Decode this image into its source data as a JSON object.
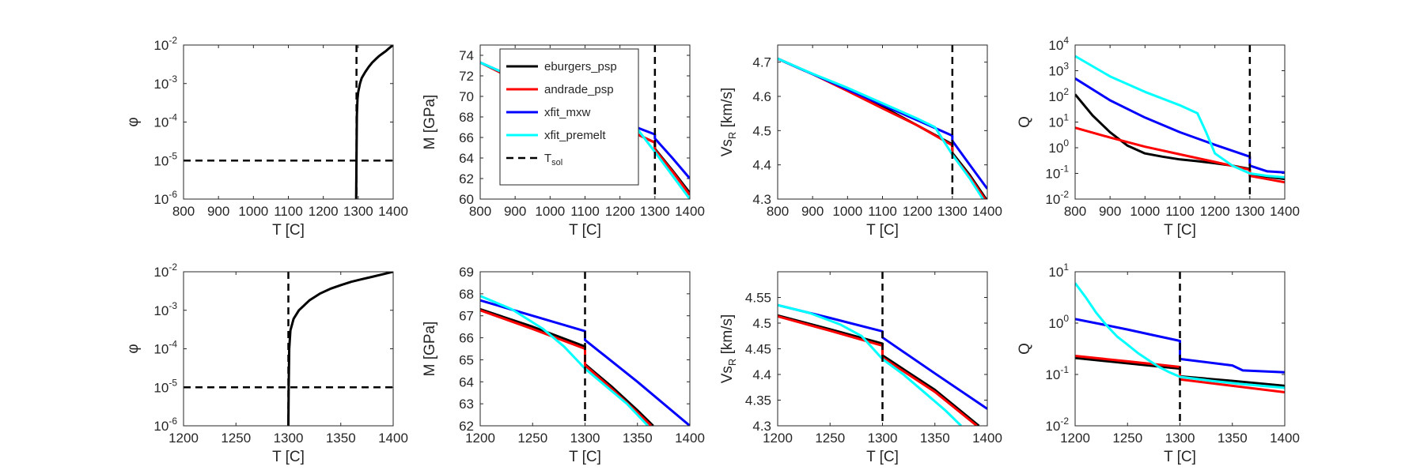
{
  "colors": {
    "eburgers_psp": "#000000",
    "andrade_psp": "#ff0000",
    "xfit_mxw": "#0000ff",
    "xfit_premelt": "#00ffff",
    "T_sol": "#000000"
  },
  "legend": {
    "entries": [
      "eburgers_psp",
      "andrade_psp",
      "xfit_mxw",
      "xfit_premelt"
    ],
    "tsol_label": "T",
    "tsol_sub": "sol"
  },
  "chart_data": [
    {
      "id": "phi-full",
      "type": "line",
      "xlabel": "T [C]",
      "ylabel": "φ",
      "yscale": "log",
      "xlim": [
        800,
        1400
      ],
      "ylim": [
        1e-06,
        0.01
      ],
      "xticks": [
        "800",
        "900",
        "1000",
        "1100",
        "1200",
        "1300",
        "1400"
      ],
      "yticks": [
        {
          "base": "10",
          "exp": "-6",
          "v": 1e-06
        },
        {
          "base": "10",
          "exp": "-5",
          "v": 1e-05
        },
        {
          "base": "10",
          "exp": "-4",
          "v": 0.0001
        },
        {
          "base": "10",
          "exp": "-3",
          "v": 0.001
        },
        {
          "base": "10",
          "exp": "-2",
          "v": 0.01
        }
      ],
      "vline": 1295,
      "hline": 1e-05,
      "series": [
        {
          "name": "phi",
          "color": "#000000",
          "x": [
            1294,
            1295,
            1296,
            1298,
            1300,
            1305,
            1310,
            1320,
            1330,
            1340,
            1350,
            1360,
            1370,
            1380,
            1390,
            1400
          ],
          "y": [
            1e-06,
            1e-05,
            0.00015,
            0.0004,
            0.0006,
            0.001,
            0.0014,
            0.002,
            0.0027,
            0.0035,
            0.0043,
            0.0052,
            0.0061,
            0.0071,
            0.0085,
            0.01
          ]
        }
      ]
    },
    {
      "id": "M-full",
      "type": "line",
      "xlabel": "T [C]",
      "ylabel": "M [GPa]",
      "xlim": [
        800,
        1400
      ],
      "ylim": [
        60,
        75
      ],
      "xticks": [
        "800",
        "900",
        "1000",
        "1100",
        "1200",
        "1300",
        "1400"
      ],
      "yticks": [
        {
          "label": "60",
          "v": 60
        },
        {
          "label": "62",
          "v": 62
        },
        {
          "label": "64",
          "v": 64
        },
        {
          "label": "66",
          "v": 66
        },
        {
          "label": "68",
          "v": 68
        },
        {
          "label": "70",
          "v": 70
        },
        {
          "label": "72",
          "v": 72
        },
        {
          "label": "74",
          "v": 74
        }
      ],
      "vline": 1300,
      "legend": "inside-upper-left",
      "series": [
        {
          "name": "eburgers_psp",
          "color": "#000000",
          "x": [
            800,
            900,
            1000,
            1100,
            1200,
            1300,
            1300,
            1350,
            1400
          ],
          "y": [
            73.3,
            71.6,
            70.0,
            68.6,
            67.1,
            65.5,
            64.9,
            62.8,
            60.6
          ]
        },
        {
          "name": "andrade_psp",
          "color": "#ff0000",
          "x": [
            800,
            900,
            1000,
            1100,
            1200,
            1300,
            1300,
            1350,
            1400
          ],
          "y": [
            73.3,
            71.6,
            70.0,
            68.6,
            67.1,
            65.5,
            64.8,
            62.7,
            60.4
          ]
        },
        {
          "name": "xfit_mxw",
          "color": "#0000ff",
          "x": [
            800,
            900,
            1000,
            1100,
            1200,
            1300,
            1300,
            1350,
            1400
          ],
          "y": [
            73.3,
            71.8,
            70.3,
            68.9,
            67.6,
            66.3,
            65.9,
            64.0,
            62.0
          ]
        },
        {
          "name": "xfit_premelt",
          "color": "#00ffff",
          "x": [
            800,
            900,
            1000,
            1100,
            1200,
            1250,
            1300,
            1350,
            1400
          ],
          "y": [
            73.3,
            71.8,
            70.3,
            68.9,
            67.8,
            66.8,
            64.6,
            62.3,
            60.0
          ]
        }
      ]
    },
    {
      "id": "Vs-full",
      "type": "line",
      "xlabel": "T [C]",
      "ylabel": "Vs",
      "ylabel_sub": "R",
      "ylabel_tail": " [km/s]",
      "xlim": [
        800,
        1400
      ],
      "ylim": [
        4.3,
        4.75
      ],
      "xticks": [
        "800",
        "900",
        "1000",
        "1100",
        "1200",
        "1300",
        "1400"
      ],
      "yticks": [
        {
          "label": "4.3",
          "v": 4.3
        },
        {
          "label": "4.4",
          "v": 4.4
        },
        {
          "label": "4.5",
          "v": 4.5
        },
        {
          "label": "4.6",
          "v": 4.6
        },
        {
          "label": "4.7",
          "v": 4.7
        }
      ],
      "vline": 1300,
      "series": [
        {
          "name": "eburgers_psp",
          "color": "#000000",
          "x": [
            800,
            900,
            1000,
            1100,
            1200,
            1300,
            1300,
            1350,
            1400
          ],
          "y": [
            4.71,
            4.665,
            4.618,
            4.57,
            4.515,
            4.46,
            4.435,
            4.37,
            4.295
          ]
        },
        {
          "name": "andrade_psp",
          "color": "#ff0000",
          "x": [
            800,
            900,
            1000,
            1100,
            1200,
            1300,
            1300,
            1350,
            1400
          ],
          "y": [
            4.71,
            4.665,
            4.616,
            4.565,
            4.515,
            4.457,
            4.43,
            4.365,
            4.29
          ]
        },
        {
          "name": "xfit_mxw",
          "color": "#0000ff",
          "x": [
            800,
            900,
            1000,
            1100,
            1200,
            1300,
            1300,
            1350,
            1400
          ],
          "y": [
            4.71,
            4.665,
            4.62,
            4.575,
            4.53,
            4.485,
            4.47,
            4.4,
            4.33
          ]
        },
        {
          "name": "xfit_premelt",
          "color": "#00ffff",
          "x": [
            800,
            900,
            1000,
            1100,
            1200,
            1250,
            1300,
            1350,
            1400
          ],
          "y": [
            4.71,
            4.666,
            4.625,
            4.58,
            4.535,
            4.51,
            4.43,
            4.36,
            4.28
          ]
        }
      ]
    },
    {
      "id": "Q-full",
      "type": "line",
      "xlabel": "T [C]",
      "ylabel": "Q",
      "yscale": "log",
      "xlim": [
        800,
        1400
      ],
      "ylim": [
        0.01,
        10000
      ],
      "xticks": [
        "800",
        "900",
        "1000",
        "1100",
        "1200",
        "1300",
        "1400"
      ],
      "yticks": [
        {
          "base": "10",
          "exp": "-2",
          "v": 0.01
        },
        {
          "base": "10",
          "exp": "-1",
          "v": 0.1
        },
        {
          "base": "10",
          "exp": "0",
          "v": 1
        },
        {
          "base": "10",
          "exp": "1",
          "v": 10
        },
        {
          "base": "10",
          "exp": "2",
          "v": 100
        },
        {
          "base": "10",
          "exp": "3",
          "v": 1000
        },
        {
          "base": "10",
          "exp": "4",
          "v": 10000
        }
      ],
      "vline": 1300,
      "series": [
        {
          "name": "eburgers_psp",
          "color": "#000000",
          "x": [
            800,
            850,
            900,
            950,
            1000,
            1050,
            1100,
            1150,
            1200,
            1250,
            1300,
            1300,
            1350,
            1400
          ],
          "y": [
            120,
            18,
            4,
            1.2,
            0.6,
            0.45,
            0.35,
            0.3,
            0.25,
            0.2,
            0.15,
            0.09,
            0.075,
            0.06
          ]
        },
        {
          "name": "andrade_psp",
          "color": "#ff0000",
          "x": [
            800,
            900,
            1000,
            1100,
            1200,
            1300,
            1300,
            1350,
            1400
          ],
          "y": [
            6,
            2.5,
            1.1,
            0.55,
            0.28,
            0.14,
            0.08,
            0.06,
            0.045
          ]
        },
        {
          "name": "xfit_mxw",
          "color": "#0000ff",
          "x": [
            800,
            900,
            1000,
            1100,
            1200,
            1300,
            1300,
            1350,
            1400
          ],
          "y": [
            500,
            70,
            15,
            4,
            1.3,
            0.45,
            0.2,
            0.12,
            0.11
          ]
        },
        {
          "name": "xfit_premelt",
          "color": "#00ffff",
          "x": [
            800,
            900,
            1000,
            1100,
            1150,
            1175,
            1200,
            1250,
            1300,
            1350,
            1400
          ],
          "y": [
            3700,
            600,
            150,
            45,
            22,
            4,
            0.6,
            0.2,
            0.1,
            0.08,
            0.07
          ]
        }
      ]
    },
    {
      "id": "phi-zoom",
      "type": "line",
      "xlabel": "T [C]",
      "ylabel": "φ",
      "yscale": "log",
      "xlim": [
        1200,
        1400
      ],
      "ylim": [
        1e-06,
        0.01
      ],
      "xticks": [
        "1200",
        "1250",
        "1300",
        "1350",
        "1400"
      ],
      "yticks": [
        {
          "base": "10",
          "exp": "-6",
          "v": 1e-06
        },
        {
          "base": "10",
          "exp": "-5",
          "v": 1e-05
        },
        {
          "base": "10",
          "exp": "-4",
          "v": 0.0001
        },
        {
          "base": "10",
          "exp": "-3",
          "v": 0.001
        },
        {
          "base": "10",
          "exp": "-2",
          "v": 0.01
        }
      ],
      "vline": 1300,
      "hline": 1e-05,
      "series": [
        {
          "name": "phi",
          "color": "#000000",
          "x": [
            1300,
            1300.3,
            1300.8,
            1302,
            1305,
            1310,
            1320,
            1330,
            1340,
            1350,
            1360,
            1370,
            1380,
            1390,
            1400
          ],
          "y": [
            1e-06,
            1e-05,
            0.0001,
            0.0003,
            0.0006,
            0.001,
            0.0018,
            0.0027,
            0.0036,
            0.0045,
            0.0055,
            0.0064,
            0.0074,
            0.0086,
            0.01
          ]
        }
      ]
    },
    {
      "id": "M-zoom",
      "type": "line",
      "xlabel": "T [C]",
      "ylabel": "M [GPa]",
      "xlim": [
        1200,
        1400
      ],
      "ylim": [
        62,
        69
      ],
      "xticks": [
        "1200",
        "1250",
        "1300",
        "1350",
        "1400"
      ],
      "yticks": [
        {
          "label": "62",
          "v": 62
        },
        {
          "label": "63",
          "v": 63
        },
        {
          "label": "64",
          "v": 64
        },
        {
          "label": "65",
          "v": 65
        },
        {
          "label": "66",
          "v": 66
        },
        {
          "label": "67",
          "v": 67
        },
        {
          "label": "68",
          "v": 68
        },
        {
          "label": "69",
          "v": 69
        }
      ],
      "vline": 1300,
      "series": [
        {
          "name": "eburgers_psp",
          "color": "#000000",
          "x": [
            1200,
            1250,
            1300,
            1300,
            1325,
            1350,
            1365
          ],
          "y": [
            67.3,
            66.5,
            65.6,
            64.8,
            63.8,
            62.7,
            62.0
          ]
        },
        {
          "name": "andrade_psp",
          "color": "#ff0000",
          "x": [
            1200,
            1250,
            1300,
            1300,
            1325,
            1350,
            1363
          ],
          "y": [
            67.25,
            66.4,
            65.5,
            64.75,
            63.7,
            62.6,
            62.0
          ]
        },
        {
          "name": "xfit_mxw",
          "color": "#0000ff",
          "x": [
            1200,
            1250,
            1300,
            1300,
            1350,
            1400
          ],
          "y": [
            67.7,
            67.0,
            66.3,
            65.9,
            64.0,
            62.0
          ]
        },
        {
          "name": "xfit_premelt",
          "color": "#00ffff",
          "x": [
            1200,
            1230,
            1260,
            1280,
            1300,
            1320,
            1340,
            1360
          ],
          "y": [
            67.9,
            67.3,
            66.4,
            65.6,
            64.6,
            63.8,
            63.0,
            62.0
          ]
        }
      ]
    },
    {
      "id": "Vs-zoom",
      "type": "line",
      "xlabel": "T [C]",
      "ylabel": "Vs",
      "ylabel_sub": "R",
      "ylabel_tail": " [km/s]",
      "xlim": [
        1200,
        1400
      ],
      "ylim": [
        4.3,
        4.6
      ],
      "xticks": [
        "1200",
        "1250",
        "1300",
        "1350",
        "1400"
      ],
      "yticks": [
        {
          "label": "4.3",
          "v": 4.3
        },
        {
          "label": "4.35",
          "v": 4.35
        },
        {
          "label": "4.4",
          "v": 4.4
        },
        {
          "label": "4.45",
          "v": 4.45
        },
        {
          "label": "4.5",
          "v": 4.5
        },
        {
          "label": "4.55",
          "v": 4.55
        }
      ],
      "vline": 1300,
      "series": [
        {
          "name": "eburgers_psp",
          "color": "#000000",
          "x": [
            1200,
            1250,
            1300,
            1300,
            1350,
            1392
          ],
          "y": [
            4.515,
            4.488,
            4.46,
            4.437,
            4.37,
            4.3
          ]
        },
        {
          "name": "andrade_psp",
          "color": "#ff0000",
          "x": [
            1200,
            1250,
            1300,
            1300,
            1350,
            1390
          ],
          "y": [
            4.513,
            4.485,
            4.456,
            4.433,
            4.366,
            4.3
          ]
        },
        {
          "name": "xfit_mxw",
          "color": "#0000ff",
          "x": [
            1200,
            1250,
            1300,
            1300,
            1350,
            1400
          ],
          "y": [
            4.535,
            4.51,
            4.484,
            4.472,
            4.402,
            4.333
          ]
        },
        {
          "name": "xfit_premelt",
          "color": "#00ffff",
          "x": [
            1200,
            1230,
            1260,
            1280,
            1300,
            1320,
            1340,
            1360,
            1375
          ],
          "y": [
            4.535,
            4.52,
            4.497,
            4.475,
            4.43,
            4.4,
            4.365,
            4.33,
            4.3
          ]
        }
      ]
    },
    {
      "id": "Q-zoom",
      "type": "line",
      "xlabel": "T [C]",
      "ylabel": "Q",
      "yscale": "log",
      "xlim": [
        1200,
        1400
      ],
      "ylim": [
        0.01,
        10
      ],
      "xticks": [
        "1200",
        "1250",
        "1300",
        "1350",
        "1400"
      ],
      "yticks": [
        {
          "base": "10",
          "exp": "-2",
          "v": 0.01
        },
        {
          "base": "10",
          "exp": "-1",
          "v": 0.1
        },
        {
          "base": "10",
          "exp": "0",
          "v": 1
        },
        {
          "base": "10",
          "exp": "1",
          "v": 10
        }
      ],
      "vline": 1300,
      "series": [
        {
          "name": "eburgers_psp",
          "color": "#000000",
          "x": [
            1200,
            1250,
            1300,
            1300,
            1350,
            1400
          ],
          "y": [
            0.21,
            0.165,
            0.13,
            0.092,
            0.075,
            0.06
          ]
        },
        {
          "name": "andrade_psp",
          "color": "#ff0000",
          "x": [
            1200,
            1250,
            1300,
            1300,
            1350,
            1400
          ],
          "y": [
            0.23,
            0.18,
            0.14,
            0.08,
            0.06,
            0.045
          ]
        },
        {
          "name": "xfit_mxw",
          "color": "#0000ff",
          "x": [
            1200,
            1225,
            1250,
            1275,
            1300,
            1300,
            1350,
            1360,
            1400
          ],
          "y": [
            1.2,
            0.95,
            0.75,
            0.58,
            0.45,
            0.2,
            0.15,
            0.12,
            0.11
          ]
        },
        {
          "name": "xfit_premelt",
          "color": "#00ffff",
          "x": [
            1200,
            1210,
            1220,
            1230,
            1240,
            1250,
            1260,
            1270,
            1280,
            1290,
            1300,
            1330,
            1360,
            1400
          ],
          "y": [
            6,
            3.2,
            1.6,
            0.9,
            0.55,
            0.38,
            0.26,
            0.19,
            0.14,
            0.11,
            0.09,
            0.075,
            0.065,
            0.055
          ]
        }
      ]
    }
  ]
}
